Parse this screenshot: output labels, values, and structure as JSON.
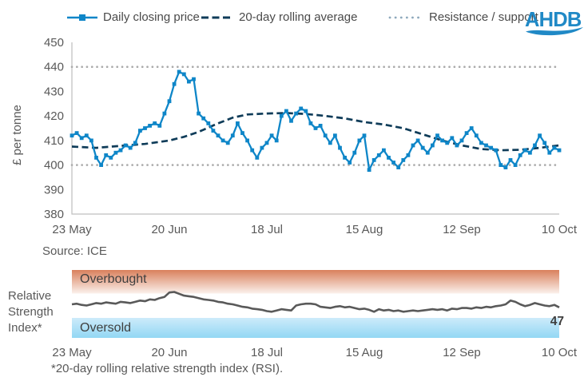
{
  "colors": {
    "price_line": "#0E86C8",
    "avg_line": "#0F3C59",
    "band_line": "#ABABAB",
    "legend_dots": "#8EA9BC",
    "axis": "#BFBFBF",
    "logo_blue": "#2089C6",
    "rsi_line": "#595959",
    "overbought_top": "#D9805C",
    "overbought_bottom": "#FBF1EC",
    "oversold_top": "#CDEBFA",
    "oversold_bottom": "#92D7F4"
  },
  "legend": {
    "items": [
      {
        "label": "Daily closing price",
        "icon": "line-with-square-marker"
      },
      {
        "label": "20-day rolling average",
        "icon": "dashed-line"
      },
      {
        "label": "Resistance / support",
        "icon": "dotted-line"
      }
    ]
  },
  "logo": {
    "text": "AHDB"
  },
  "source": "Source: ICE",
  "rsi_label": "Relative\nStrength\nIndex*",
  "footnote": "*20-day rolling relative strength index (RSI).",
  "chart_data": [
    {
      "type": "line",
      "title": "",
      "ylabel": "£ per tonne",
      "ylim": [
        380,
        450
      ],
      "yticks": [
        450,
        440,
        430,
        420,
        410,
        400,
        390,
        380
      ],
      "xticklabels": [
        "23 May",
        "20 Jun",
        "18 Jul",
        "15 Aug",
        "12 Sep",
        "10 Oct"
      ],
      "resistance": 440,
      "support": 400,
      "grid": false,
      "legend_position": "top",
      "series": [
        {
          "name": "Daily closing price",
          "values": [
            412,
            413,
            411,
            412,
            410,
            403,
            400,
            404,
            403,
            405,
            406,
            408,
            407,
            409,
            414,
            415,
            416,
            417,
            416,
            421,
            426,
            433,
            438,
            437,
            434,
            435,
            421,
            419,
            417,
            414,
            412,
            410,
            409,
            412,
            417,
            413,
            410,
            406,
            403,
            407,
            409,
            412,
            410,
            420,
            422,
            418,
            421,
            423,
            422,
            417,
            415,
            416,
            412,
            409,
            412,
            407,
            403,
            401,
            405,
            410,
            412,
            398,
            402,
            404,
            406,
            403,
            401,
            399,
            402,
            404,
            408,
            410,
            407,
            405,
            408,
            412,
            410,
            409,
            411,
            408,
            410,
            413,
            415,
            412,
            409,
            408,
            407,
            406,
            400,
            399,
            402,
            400,
            404,
            406,
            405,
            408,
            412,
            409,
            405,
            407,
            406
          ]
        },
        {
          "name": "20-day rolling average",
          "points": [
            [
              0,
              407.5
            ],
            [
              5,
              407
            ],
            [
              10,
              407.8
            ],
            [
              15,
              408.6
            ],
            [
              20,
              410
            ],
            [
              23,
              411.5
            ],
            [
              26,
              413.5
            ],
            [
              30,
              417
            ],
            [
              33,
              419.3
            ],
            [
              36,
              420.6
            ],
            [
              40,
              421
            ],
            [
              44,
              421.2
            ],
            [
              48,
              420.8
            ],
            [
              52,
              420
            ],
            [
              56,
              419
            ],
            [
              60,
              417.5
            ],
            [
              64,
              416.5
            ],
            [
              68,
              415
            ],
            [
              72,
              412.5
            ],
            [
              76,
              410
            ],
            [
              80,
              408
            ],
            [
              84,
              406.5
            ],
            [
              88,
              406
            ],
            [
              92,
              406.2
            ],
            [
              96,
              407
            ],
            [
              100,
              408
            ]
          ]
        }
      ]
    },
    {
      "type": "line",
      "title": "Relative Strength Index*",
      "ylim": [
        0,
        100
      ],
      "xticklabels": [
        "23 May",
        "20 Jun",
        "18 Jul",
        "15 Aug",
        "12 Sep",
        "10 Oct"
      ],
      "bands": {
        "overbought": {
          "label": "Overbought",
          "range": [
            70,
            100
          ]
        },
        "oversold": {
          "label": "Oversold",
          "range": [
            0,
            30
          ]
        }
      },
      "last_value_label": "47",
      "series": [
        {
          "name": "20-day rolling RSI",
          "values": [
            52,
            53,
            51,
            50,
            52,
            54,
            53,
            55,
            54,
            53,
            56,
            55,
            54,
            56,
            58,
            57,
            60,
            59,
            62,
            64,
            71,
            72,
            69,
            66,
            65,
            64,
            62,
            60,
            59,
            58,
            56,
            55,
            53,
            52,
            50,
            48,
            47,
            45,
            44,
            43,
            41,
            40,
            42,
            44,
            43,
            42,
            50,
            52,
            53,
            53,
            52,
            48,
            47,
            46,
            48,
            49,
            47,
            48,
            46,
            44,
            45,
            43,
            40,
            44,
            42,
            43,
            41,
            42,
            40,
            41,
            42,
            41,
            42,
            43,
            44,
            43,
            44,
            42,
            45,
            44,
            46,
            46,
            45,
            47,
            46,
            48,
            47,
            49,
            50,
            52,
            58,
            56,
            52,
            49,
            51,
            54,
            52,
            50,
            49,
            51,
            47
          ]
        }
      ]
    }
  ]
}
